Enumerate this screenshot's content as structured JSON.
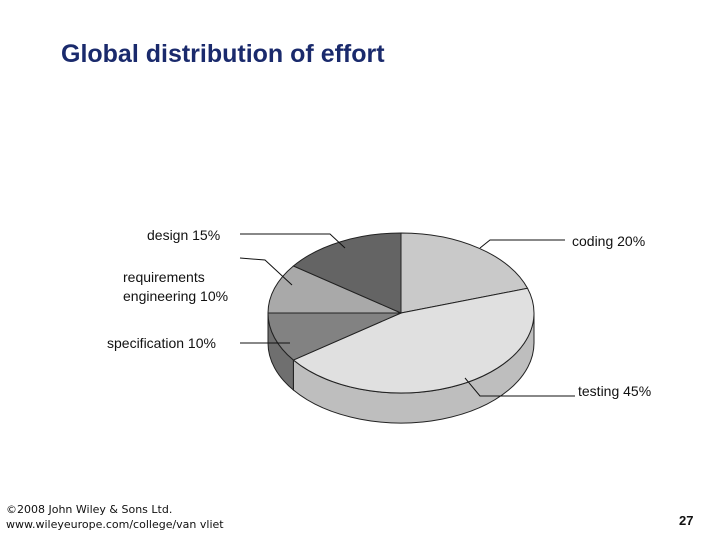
{
  "chart_data": {
    "type": "pie",
    "title": "Global distribution of effort",
    "values": [
      20,
      45,
      10,
      10,
      15
    ],
    "value_labels": [
      "coding 20%",
      "testing 45%",
      "specification 10%",
      "requirements engineering 10%",
      "design 15%"
    ],
    "colors": [
      "#c9c9c9",
      "#e0e0e0",
      "#828282",
      "#a9a9a9",
      "#646464"
    ]
  },
  "footer": {
    "copyright": "©2008 John Wiley & Sons Ltd.",
    "url": "www.wileyeurope.com/college/van vliet",
    "page": "27"
  }
}
